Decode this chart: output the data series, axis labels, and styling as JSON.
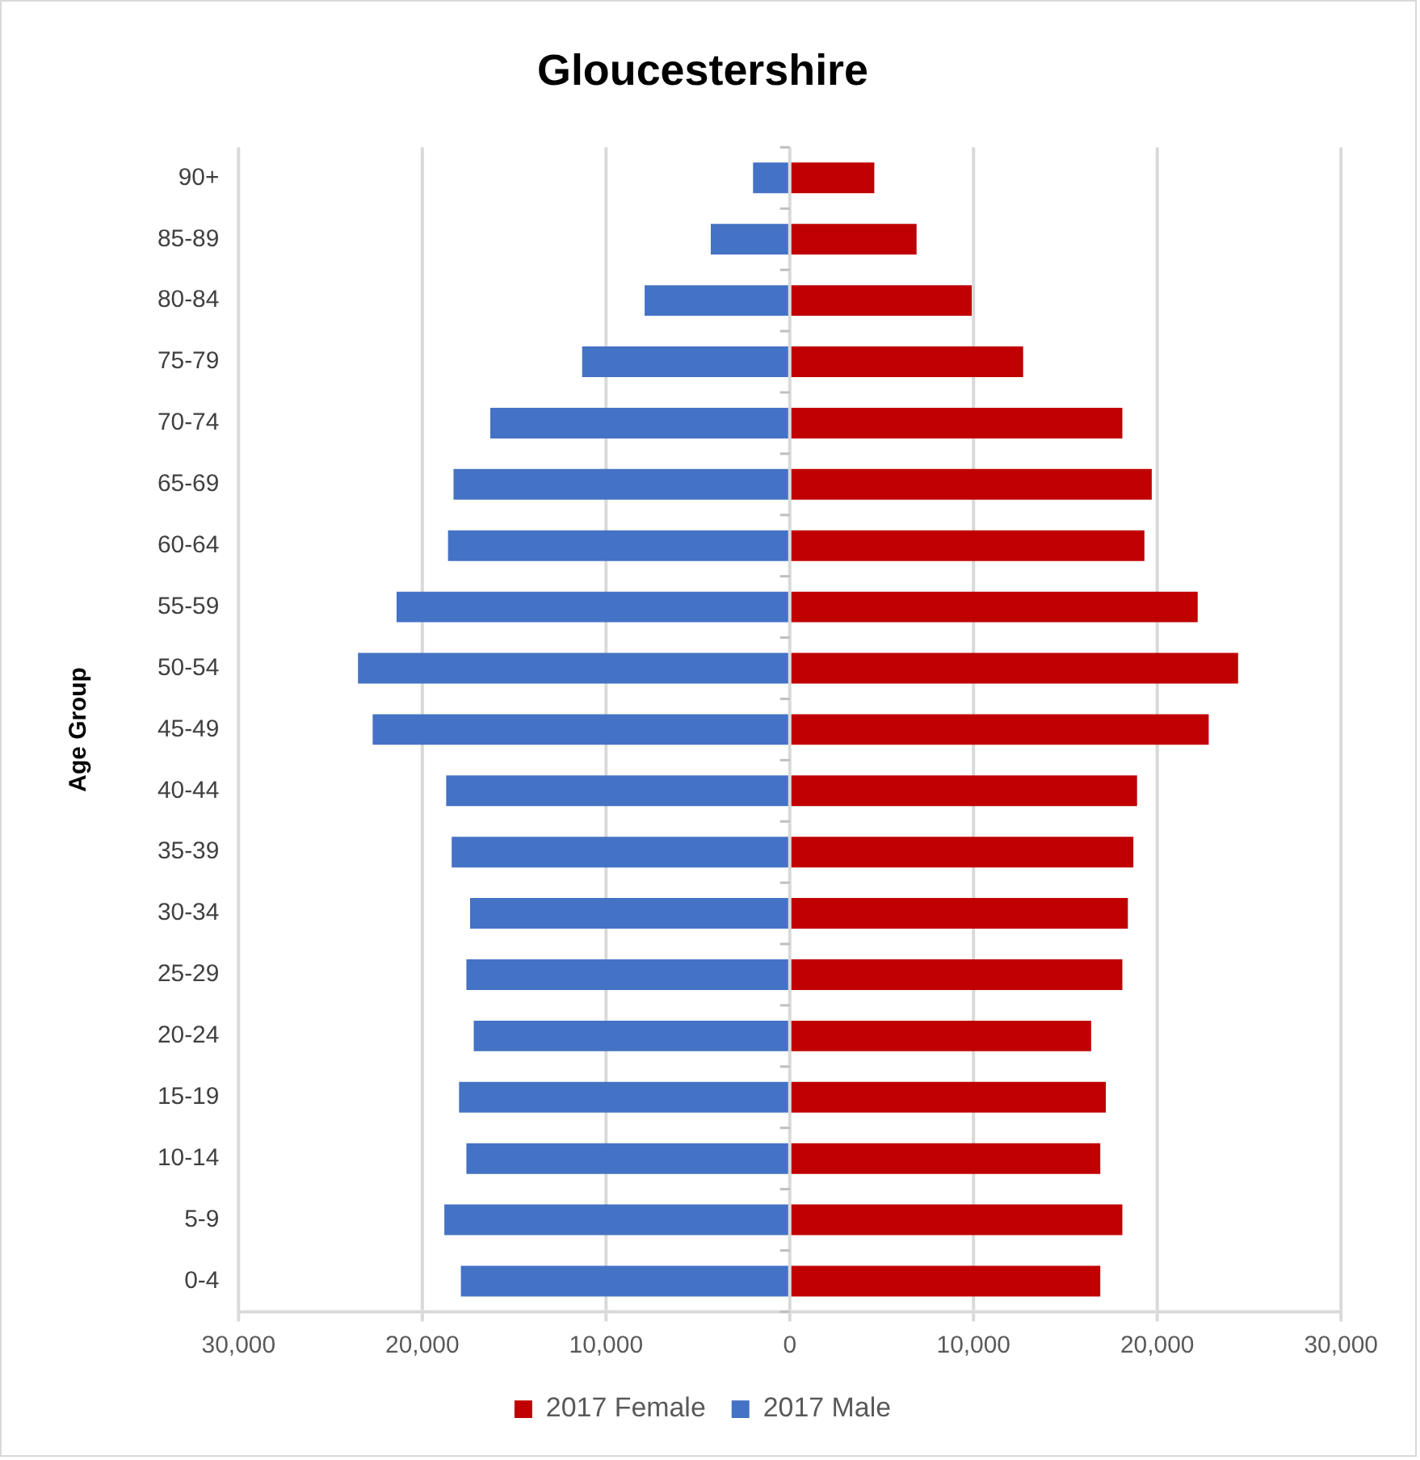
{
  "chart_data": {
    "type": "bar",
    "orientation": "horizontal",
    "stacked": true,
    "title": "Gloucestershire",
    "ylabel": "Age Group",
    "categories": [
      "90+",
      "85-89",
      "80-84",
      "75-79",
      "70-74",
      "65-69",
      "60-64",
      "55-59",
      "50-54",
      "45-49",
      "40-44",
      "35-39",
      "30-34",
      "25-29",
      "20-24",
      "15-19",
      "10-14",
      "5-9",
      "0-4"
    ],
    "series": [
      {
        "name": "2017 Female",
        "color": "#c00000",
        "values": [
          4600,
          6900,
          9900,
          12700,
          18100,
          19700,
          19300,
          22200,
          24400,
          22800,
          18900,
          18700,
          18400,
          18100,
          16400,
          17200,
          16900,
          18100,
          16900
        ]
      },
      {
        "name": "2017 Male",
        "color": "#4472c4",
        "values": [
          -2000,
          -4300,
          -7900,
          -11300,
          -16300,
          -18300,
          -18600,
          -21400,
          -23500,
          -22700,
          -18700,
          -18400,
          -17400,
          -17600,
          -17200,
          -18000,
          -17600,
          -18800,
          -17900
        ]
      }
    ],
    "xlim": [
      -30000,
      30000
    ],
    "xticks": [
      {
        "value": -30000,
        "label": "30,000"
      },
      {
        "value": -20000,
        "label": "20,000"
      },
      {
        "value": -10000,
        "label": "10,000"
      },
      0,
      {
        "value": 10000,
        "label": "10,000"
      },
      {
        "value": 20000,
        "label": "20,000"
      },
      {
        "value": 30000,
        "label": "30,000"
      }
    ],
    "grid": "x",
    "legend": "bottom"
  }
}
